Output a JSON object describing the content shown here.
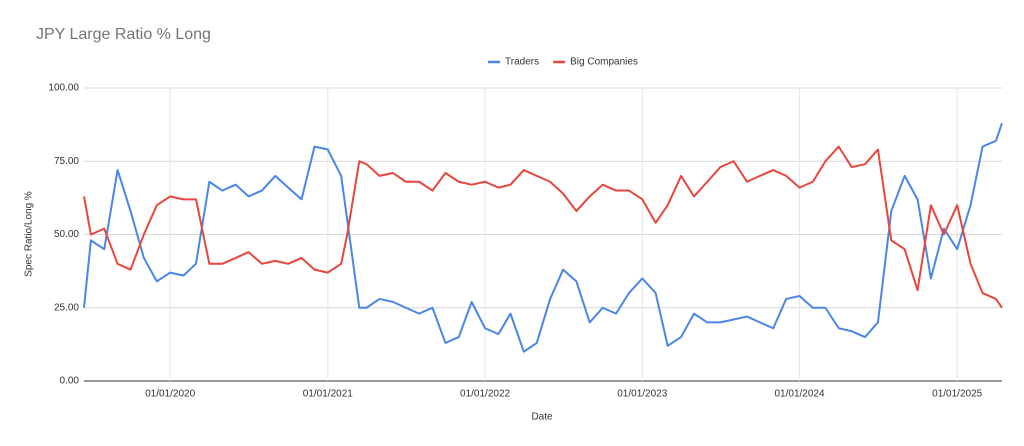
{
  "chart_data": {
    "type": "line",
    "title": "JPY Large Ratio % Long",
    "x_label": "Date",
    "y_label": "Spec Ratio/Long %",
    "legend": "top",
    "grid": true,
    "x": [
      "2019-06-15",
      "2019-07-01",
      "2019-08-01",
      "2019-09-01",
      "2019-10-01",
      "2019-11-01",
      "2019-12-01",
      "2020-01-01",
      "2020-02-01",
      "2020-03-01",
      "2020-04-01",
      "2020-05-01",
      "2020-06-01",
      "2020-07-01",
      "2020-08-01",
      "2020-09-01",
      "2020-10-01",
      "2020-11-01",
      "2020-12-01",
      "2021-01-01",
      "2021-02-01",
      "2021-02-15",
      "2021-03-15",
      "2021-04-01",
      "2021-05-01",
      "2021-06-01",
      "2021-07-01",
      "2021-08-01",
      "2021-09-01",
      "2021-10-01",
      "2021-11-01",
      "2021-12-01",
      "2022-01-01",
      "2022-02-01",
      "2022-03-01",
      "2022-04-01",
      "2022-05-01",
      "2022-06-01",
      "2022-07-01",
      "2022-08-01",
      "2022-09-01",
      "2022-10-01",
      "2022-11-01",
      "2022-12-01",
      "2023-01-01",
      "2023-02-01",
      "2023-03-01",
      "2023-04-01",
      "2023-05-01",
      "2023-06-01",
      "2023-07-01",
      "2023-08-01",
      "2023-09-01",
      "2023-10-01",
      "2023-11-01",
      "2023-12-01",
      "2024-01-01",
      "2024-02-01",
      "2024-03-01",
      "2024-04-01",
      "2024-05-01",
      "2024-06-01",
      "2024-07-01",
      "2024-08-01",
      "2024-09-01",
      "2024-10-01",
      "2024-11-01",
      "2024-12-01",
      "2025-01-01",
      "2025-02-01",
      "2025-03-01",
      "2025-04-01",
      "2025-04-15"
    ],
    "series": [
      {
        "name": "Traders",
        "color": "#4a86e8",
        "values": [
          25,
          48,
          45,
          72,
          58,
          42,
          34,
          37,
          36,
          40,
          68,
          65,
          67,
          63,
          65,
          70,
          66,
          62,
          80,
          79,
          70,
          55,
          25,
          25,
          28,
          27,
          25,
          23,
          25,
          13,
          15,
          27,
          18,
          16,
          23,
          10,
          13,
          28,
          38,
          34,
          20,
          25,
          23,
          30,
          35,
          30,
          12,
          15,
          23,
          20,
          20,
          21,
          22,
          20,
          18,
          28,
          29,
          25,
          25,
          18,
          17,
          15,
          20,
          58,
          70,
          62,
          35,
          52,
          45,
          60,
          80,
          82,
          88
        ]
      },
      {
        "name": "Big Companies",
        "color": "#e8453c",
        "values": [
          63,
          50,
          52,
          40,
          38,
          50,
          60,
          63,
          62,
          62,
          40,
          40,
          42,
          44,
          40,
          41,
          40,
          42,
          38,
          37,
          40,
          50,
          75,
          74,
          70,
          71,
          68,
          68,
          65,
          71,
          68,
          67,
          68,
          66,
          67,
          72,
          70,
          68,
          64,
          58,
          63,
          67,
          65,
          65,
          62,
          54,
          60,
          70,
          63,
          68,
          73,
          75,
          68,
          70,
          72,
          70,
          66,
          68,
          75,
          80,
          73,
          74,
          79,
          48,
          45,
          31,
          60,
          50,
          60,
          40,
          30,
          28,
          25
        ]
      }
    ],
    "xlim": [
      "2019-06-15",
      "2025-04-15"
    ],
    "xticks": [
      {
        "value": "2020-01-01",
        "label": "01/01/2020"
      },
      {
        "value": "2021-01-01",
        "label": "01/01/2021"
      },
      {
        "value": "2022-01-01",
        "label": "01/01/2022"
      },
      {
        "value": "2023-01-01",
        "label": "01/01/2023"
      },
      {
        "value": "2024-01-01",
        "label": "01/01/2024"
      },
      {
        "value": "2025-01-01",
        "label": "01/01/2025"
      }
    ],
    "ylim": [
      0,
      100
    ],
    "yticks": [
      {
        "value": 0,
        "label": "0.00"
      },
      {
        "value": 25,
        "label": "25.00"
      },
      {
        "value": 50,
        "label": "50.00"
      },
      {
        "value": 75,
        "label": "75.00"
      },
      {
        "value": 100,
        "label": "100.00"
      }
    ]
  }
}
